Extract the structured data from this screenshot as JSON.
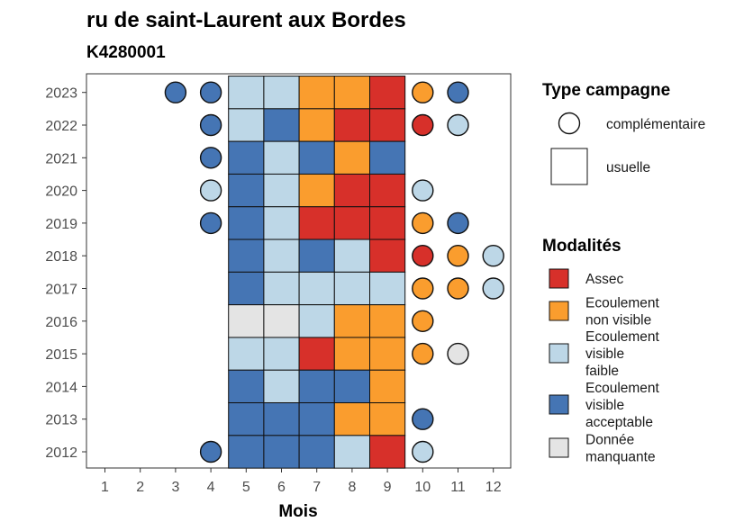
{
  "chart_data": {
    "type": "heatmap",
    "title": "ru de saint-Laurent aux Bordes",
    "subtitle": "K4280001",
    "xlabel": "Mois",
    "ylabel": "",
    "x_ticks": [
      "1",
      "2",
      "3",
      "4",
      "5",
      "6",
      "7",
      "8",
      "9",
      "10",
      "11",
      "12"
    ],
    "y_ticks": [
      "2012",
      "2013",
      "2014",
      "2015",
      "2016",
      "2017",
      "2018",
      "2019",
      "2020",
      "2021",
      "2022",
      "2023"
    ],
    "grid": false,
    "legend_placement": "right",
    "colors": {
      "assec": "#d7302a",
      "ecoulement_non_visible": "#fa9d2e",
      "ecoulement_visible_faible": "#bdd7e7",
      "ecoulement_visible_acceptable": "#4575b4",
      "donnee_manquante": "#e4e4e4"
    },
    "legend_type": {
      "title": "Type campagne",
      "items": [
        {
          "key": "complementaire",
          "label": "complémentaire",
          "shape": "circle"
        },
        {
          "key": "usuelle",
          "label": "usuelle",
          "shape": "square"
        }
      ]
    },
    "legend_modalites": {
      "title": "Modalités",
      "items": [
        {
          "key": "assec",
          "label_lines": [
            "Assec"
          ]
        },
        {
          "key": "ecoulement_non_visible",
          "label_lines": [
            "Ecoulement",
            "non visible"
          ]
        },
        {
          "key": "ecoulement_visible_faible",
          "label_lines": [
            "Ecoulement",
            "visible",
            "faible"
          ]
        },
        {
          "key": "ecoulement_visible_acceptable",
          "label_lines": [
            "Ecoulement",
            "visible",
            "acceptable"
          ]
        },
        {
          "key": "donnee_manquante",
          "label_lines": [
            "Donnée",
            "manquante"
          ]
        }
      ]
    },
    "usuelle": [
      {
        "year": 2023,
        "months": {
          "5": "ecoulement_visible_faible",
          "6": "ecoulement_visible_faible",
          "7": "ecoulement_non_visible",
          "8": "ecoulement_non_visible",
          "9": "assec"
        }
      },
      {
        "year": 2022,
        "months": {
          "5": "ecoulement_visible_faible",
          "6": "ecoulement_visible_acceptable",
          "7": "ecoulement_non_visible",
          "8": "assec",
          "9": "assec"
        }
      },
      {
        "year": 2021,
        "months": {
          "5": "ecoulement_visible_acceptable",
          "6": "ecoulement_visible_faible",
          "7": "ecoulement_visible_acceptable",
          "8": "ecoulement_non_visible",
          "9": "ecoulement_visible_acceptable"
        }
      },
      {
        "year": 2020,
        "months": {
          "5": "ecoulement_visible_acceptable",
          "6": "ecoulement_visible_faible",
          "7": "ecoulement_non_visible",
          "8": "assec",
          "9": "assec"
        }
      },
      {
        "year": 2019,
        "months": {
          "5": "ecoulement_visible_acceptable",
          "6": "ecoulement_visible_faible",
          "7": "assec",
          "8": "assec",
          "9": "assec"
        }
      },
      {
        "year": 2018,
        "months": {
          "5": "ecoulement_visible_acceptable",
          "6": "ecoulement_visible_faible",
          "7": "ecoulement_visible_acceptable",
          "8": "ecoulement_visible_faible",
          "9": "assec"
        }
      },
      {
        "year": 2017,
        "months": {
          "5": "ecoulement_visible_acceptable",
          "6": "ecoulement_visible_faible",
          "7": "ecoulement_visible_faible",
          "8": "ecoulement_visible_faible",
          "9": "ecoulement_visible_faible"
        }
      },
      {
        "year": 2016,
        "months": {
          "5": "donnee_manquante",
          "6": "donnee_manquante",
          "7": "ecoulement_visible_faible",
          "8": "ecoulement_non_visible",
          "9": "ecoulement_non_visible"
        }
      },
      {
        "year": 2015,
        "months": {
          "5": "ecoulement_visible_faible",
          "6": "ecoulement_visible_faible",
          "7": "assec",
          "8": "ecoulement_non_visible",
          "9": "ecoulement_non_visible"
        }
      },
      {
        "year": 2014,
        "months": {
          "5": "ecoulement_visible_acceptable",
          "6": "ecoulement_visible_faible",
          "7": "ecoulement_visible_acceptable",
          "8": "ecoulement_visible_acceptable",
          "9": "ecoulement_non_visible"
        }
      },
      {
        "year": 2013,
        "months": {
          "5": "ecoulement_visible_acceptable",
          "6": "ecoulement_visible_acceptable",
          "7": "ecoulement_visible_acceptable",
          "8": "ecoulement_non_visible",
          "9": "ecoulement_non_visible"
        }
      },
      {
        "year": 2012,
        "months": {
          "5": "ecoulement_visible_acceptable",
          "6": "ecoulement_visible_acceptable",
          "7": "ecoulement_visible_acceptable",
          "8": "ecoulement_visible_faible",
          "9": "assec"
        }
      }
    ],
    "complementaire": [
      {
        "year": 2023,
        "month": 3,
        "modalite": "ecoulement_visible_acceptable"
      },
      {
        "year": 2023,
        "month": 4,
        "modalite": "ecoulement_visible_acceptable"
      },
      {
        "year": 2023,
        "month": 10,
        "modalite": "ecoulement_non_visible"
      },
      {
        "year": 2023,
        "month": 11,
        "modalite": "ecoulement_visible_acceptable"
      },
      {
        "year": 2022,
        "month": 4,
        "modalite": "ecoulement_visible_acceptable"
      },
      {
        "year": 2022,
        "month": 10,
        "modalite": "assec"
      },
      {
        "year": 2022,
        "month": 11,
        "modalite": "ecoulement_visible_faible"
      },
      {
        "year": 2021,
        "month": 4,
        "modalite": "ecoulement_visible_acceptable"
      },
      {
        "year": 2020,
        "month": 4,
        "modalite": "ecoulement_visible_faible"
      },
      {
        "year": 2020,
        "month": 10,
        "modalite": "ecoulement_visible_faible"
      },
      {
        "year": 2019,
        "month": 4,
        "modalite": "ecoulement_visible_acceptable"
      },
      {
        "year": 2019,
        "month": 10,
        "modalite": "ecoulement_non_visible"
      },
      {
        "year": 2019,
        "month": 11,
        "modalite": "ecoulement_visible_acceptable"
      },
      {
        "year": 2018,
        "month": 10,
        "modalite": "assec"
      },
      {
        "year": 2018,
        "month": 11,
        "modalite": "ecoulement_non_visible"
      },
      {
        "year": 2018,
        "month": 12,
        "modalite": "ecoulement_visible_faible"
      },
      {
        "year": 2017,
        "month": 10,
        "modalite": "ecoulement_non_visible"
      },
      {
        "year": 2017,
        "month": 11,
        "modalite": "ecoulement_non_visible"
      },
      {
        "year": 2017,
        "month": 12,
        "modalite": "ecoulement_visible_faible"
      },
      {
        "year": 2016,
        "month": 10,
        "modalite": "ecoulement_non_visible"
      },
      {
        "year": 2015,
        "month": 10,
        "modalite": "ecoulement_non_visible"
      },
      {
        "year": 2015,
        "month": 11,
        "modalite": "donnee_manquante"
      },
      {
        "year": 2013,
        "month": 10,
        "modalite": "ecoulement_visible_acceptable"
      },
      {
        "year": 2012,
        "month": 4,
        "modalite": "ecoulement_visible_acceptable"
      },
      {
        "year": 2012,
        "month": 10,
        "modalite": "ecoulement_visible_faible"
      }
    ]
  }
}
